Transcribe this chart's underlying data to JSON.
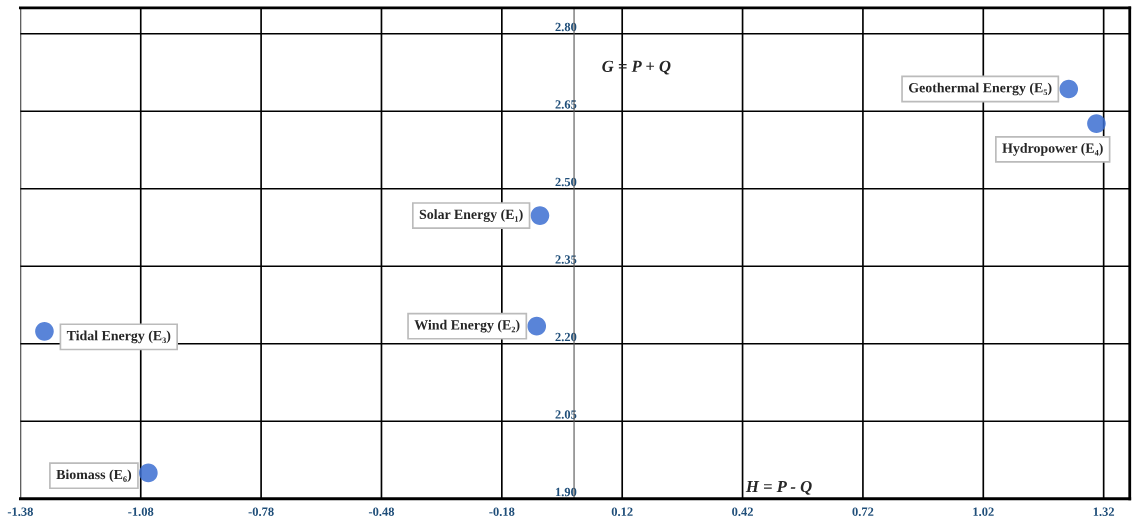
{
  "chart_data": {
    "type": "scatter",
    "xlim": [
      -1.38,
      1.385
    ],
    "ylim": [
      1.9,
      2.85
    ],
    "xticks": [
      {
        "value": -1.38,
        "label": "-1.38"
      },
      {
        "value": -1.08,
        "label": "-1.08"
      },
      {
        "value": -0.78,
        "label": "-0.78"
      },
      {
        "value": -0.48,
        "label": "-0.48"
      },
      {
        "value": -0.18,
        "label": "-0.18"
      },
      {
        "value": 0.12,
        "label": "0.12"
      },
      {
        "value": 0.42,
        "label": "0.42"
      },
      {
        "value": 0.72,
        "label": "0.72"
      },
      {
        "value": 1.02,
        "label": "1.02"
      },
      {
        "value": 1.32,
        "label": "1.32"
      }
    ],
    "yticks": [
      {
        "value": 1.9,
        "label": "1.90"
      },
      {
        "value": 2.05,
        "label": "2.05"
      },
      {
        "value": 2.2,
        "label": "2.20"
      },
      {
        "value": 2.35,
        "label": "2.35"
      },
      {
        "value": 2.5,
        "label": "2.50"
      },
      {
        "value": 2.65,
        "label": "2.65"
      },
      {
        "value": 2.8,
        "label": "2.80"
      }
    ],
    "grid": true,
    "marker": "circle",
    "legend": false,
    "series": [
      {
        "name": "Solar Energy (E₁)",
        "color": "#3c6fd1",
        "x": [
          -0.085
        ],
        "values": [
          2.448
        ]
      },
      {
        "name": "Wind Energy (E₂)",
        "color": "#3c6fd1",
        "x": [
          -0.093
        ],
        "values": [
          2.234
        ]
      },
      {
        "name": "Tidal Energy (E₃)",
        "color": "#3c6fd1",
        "x": [
          -1.32
        ],
        "values": [
          2.224
        ]
      },
      {
        "name": "Hydropower (E₄)",
        "color": "#3c6fd1",
        "x": [
          1.302
        ],
        "values": [
          2.626
        ]
      },
      {
        "name": "Geothermal Energy (E₅)",
        "color": "#3c6fd1",
        "x": [
          1.233
        ],
        "values": [
          2.693
        ]
      },
      {
        "name": "Biomass (E₆)",
        "color": "#3c6fd1",
        "x": [
          -1.061
        ],
        "values": [
          1.95
        ]
      }
    ],
    "annotations": [
      "G = P + Q",
      "H = P - Q"
    ]
  }
}
